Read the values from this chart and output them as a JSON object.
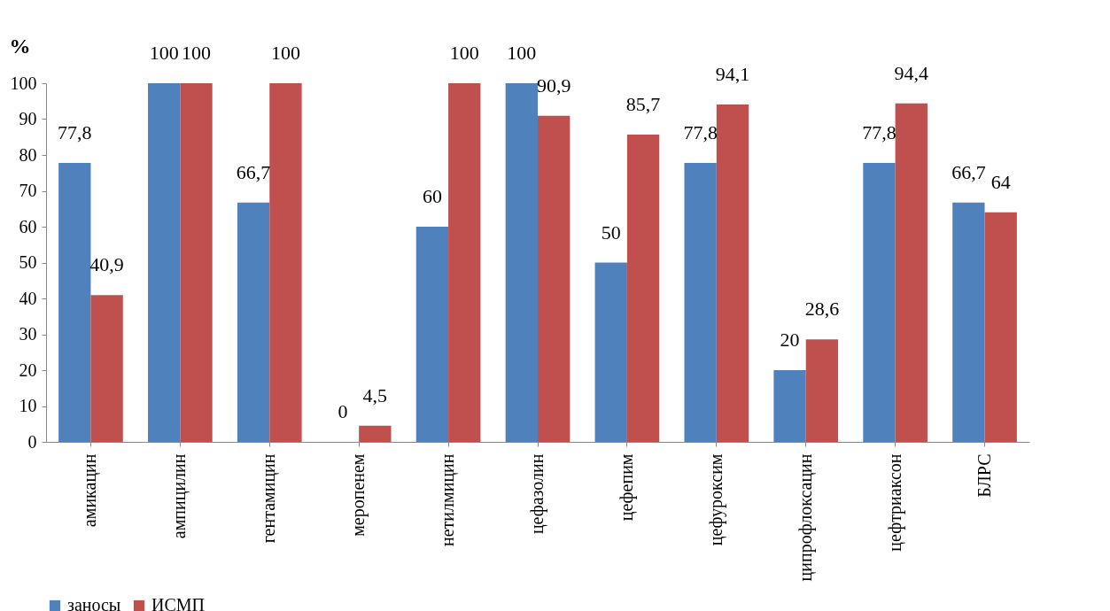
{
  "chart_data": {
    "type": "bar",
    "ylabel": "%",
    "categories": [
      "амикацин",
      "ампицилин",
      "гентамицин",
      "меропенем",
      "нетилмицин",
      "цефазолин",
      "цефепим",
      "цефуроксим",
      "ципрофлоксацин",
      "цефтриаксон",
      "БЛРС"
    ],
    "series": [
      {
        "name": "заносы",
        "color": "#4f81bd",
        "values": [
          77.8,
          100,
          66.7,
          0,
          60,
          100,
          50,
          77.8,
          20,
          77.8,
          66.7
        ],
        "value_labels": [
          "77,8",
          "100",
          "66,7",
          "0",
          "60",
          "100",
          "50",
          "77,8",
          "20",
          "77,8",
          "66,7"
        ]
      },
      {
        "name": "ИСМП",
        "color": "#c0504d",
        "values": [
          40.9,
          100,
          100,
          4.5,
          100,
          90.9,
          85.7,
          94.1,
          28.6,
          94.4,
          64
        ],
        "value_labels": [
          "40,9",
          "100",
          "100",
          "4,5",
          "100",
          "90,9",
          "85,7",
          "94,1",
          "28,6",
          "94,4",
          "64"
        ]
      }
    ],
    "ylim": [
      0,
      100
    ],
    "yticks": [
      0,
      10,
      20,
      30,
      40,
      50,
      60,
      70,
      80,
      90,
      100
    ],
    "grid": false,
    "legend": "bottom"
  }
}
